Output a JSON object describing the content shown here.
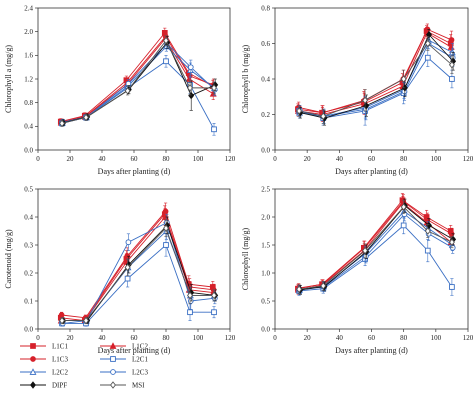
{
  "chart_data": [
    {
      "type": "line",
      "xlabel": "Days after planting (d)",
      "ylabel": "Chlorophyll a (mg/g)",
      "xlim": [
        0,
        120
      ],
      "ylim": [
        0,
        2.4
      ],
      "xticks": [
        0,
        20,
        40,
        60,
        80,
        100,
        120
      ],
      "yticks": [
        0.0,
        0.4,
        0.8,
        1.2,
        1.6,
        2.0,
        2.4
      ],
      "x": [
        15,
        30,
        56,
        80,
        95,
        110
      ],
      "series": [
        {
          "name": "L1C1",
          "values": [
            0.48,
            0.58,
            1.18,
            1.98,
            1.3,
            1.08
          ],
          "err": [
            0.05,
            0.05,
            0.07,
            0.08,
            0.12,
            0.1
          ]
        },
        {
          "name": "L1C2",
          "values": [
            0.46,
            0.56,
            1.1,
            1.88,
            1.2,
            0.95
          ],
          "err": [
            0.05,
            0.05,
            0.07,
            0.08,
            0.12,
            0.1
          ]
        },
        {
          "name": "L1C3",
          "values": [
            0.47,
            0.57,
            1.14,
            1.92,
            1.25,
            1.1
          ],
          "err": [
            0.05,
            0.05,
            0.07,
            0.08,
            0.12,
            0.1
          ]
        },
        {
          "name": "L2C1",
          "values": [
            0.45,
            0.55,
            1.05,
            1.5,
            1.1,
            0.35
          ],
          "err": [
            0.05,
            0.05,
            0.07,
            0.1,
            0.15,
            0.1
          ]
        },
        {
          "name": "L2C2",
          "values": [
            0.46,
            0.55,
            1.08,
            1.75,
            1.35,
            1.05
          ],
          "err": [
            0.05,
            0.05,
            0.07,
            0.08,
            0.12,
            0.1
          ]
        },
        {
          "name": "L2C3",
          "values": [
            0.47,
            0.56,
            1.12,
            1.8,
            1.4,
            1.02
          ],
          "err": [
            0.05,
            0.05,
            0.07,
            0.08,
            0.12,
            0.1
          ]
        },
        {
          "name": "DIPF",
          "values": [
            0.46,
            0.56,
            1.02,
            1.82,
            0.92,
            1.1
          ],
          "err": [
            0.05,
            0.05,
            0.07,
            0.1,
            0.25,
            0.1
          ]
        },
        {
          "name": "MSI",
          "values": [
            0.45,
            0.55,
            1.0,
            1.85,
            1.05,
            1.05
          ],
          "err": [
            0.05,
            0.05,
            0.07,
            0.08,
            0.12,
            0.1
          ]
        }
      ]
    },
    {
      "type": "line",
      "xlabel": "Days after planting (d)",
      "ylabel": "Chlorophyll b (mg/g)",
      "xlim": [
        0,
        120
      ],
      "ylim": [
        0,
        0.8
      ],
      "xticks": [
        0,
        20,
        40,
        60,
        80,
        100,
        120
      ],
      "yticks": [
        0.0,
        0.2,
        0.4,
        0.6,
        0.8
      ],
      "x": [
        15,
        30,
        56,
        80,
        95,
        110
      ],
      "series": [
        {
          "name": "L1C1",
          "values": [
            0.23,
            0.21,
            0.27,
            0.38,
            0.67,
            0.6
          ],
          "err": [
            0.03,
            0.04,
            0.06,
            0.05,
            0.03,
            0.05
          ]
        },
        {
          "name": "L1C2",
          "values": [
            0.22,
            0.2,
            0.26,
            0.36,
            0.66,
            0.58
          ],
          "err": [
            0.03,
            0.04,
            0.06,
            0.05,
            0.03,
            0.05
          ]
        },
        {
          "name": "L1C3",
          "values": [
            0.24,
            0.21,
            0.28,
            0.4,
            0.68,
            0.62
          ],
          "err": [
            0.03,
            0.04,
            0.06,
            0.05,
            0.03,
            0.05
          ]
        },
        {
          "name": "L2C1",
          "values": [
            0.22,
            0.18,
            0.22,
            0.32,
            0.52,
            0.4
          ],
          "err": [
            0.03,
            0.04,
            0.08,
            0.06,
            0.05,
            0.05
          ]
        },
        {
          "name": "L2C2",
          "values": [
            0.21,
            0.19,
            0.24,
            0.34,
            0.62,
            0.55
          ],
          "err": [
            0.03,
            0.04,
            0.06,
            0.05,
            0.03,
            0.05
          ]
        },
        {
          "name": "L2C3",
          "values": [
            0.22,
            0.19,
            0.23,
            0.33,
            0.6,
            0.52
          ],
          "err": [
            0.03,
            0.04,
            0.06,
            0.05,
            0.03,
            0.05
          ]
        },
        {
          "name": "DIPF",
          "values": [
            0.21,
            0.18,
            0.25,
            0.35,
            0.65,
            0.5
          ],
          "err": [
            0.03,
            0.04,
            0.06,
            0.05,
            0.03,
            0.05
          ]
        },
        {
          "name": "MSI",
          "values": [
            0.22,
            0.19,
            0.28,
            0.4,
            0.6,
            0.48
          ],
          "err": [
            0.03,
            0.04,
            0.06,
            0.05,
            0.04,
            0.05
          ]
        }
      ]
    },
    {
      "type": "line",
      "xlabel": "Days after planting (d)",
      "ylabel": "Carotenoid (mg/g)",
      "xlim": [
        0,
        120
      ],
      "ylim": [
        0,
        0.5
      ],
      "xticks": [
        0,
        20,
        40,
        60,
        80,
        100,
        120
      ],
      "yticks": [
        0.0,
        0.1,
        0.2,
        0.3,
        0.4,
        0.5
      ],
      "x": [
        15,
        30,
        56,
        80,
        95,
        110
      ],
      "series": [
        {
          "name": "L1C1",
          "values": [
            0.04,
            0.03,
            0.25,
            0.41,
            0.16,
            0.15
          ],
          "err": [
            0.01,
            0.01,
            0.03,
            0.03,
            0.03,
            0.02
          ]
        },
        {
          "name": "L1C2",
          "values": [
            0.03,
            0.03,
            0.24,
            0.4,
            0.14,
            0.13
          ],
          "err": [
            0.01,
            0.01,
            0.03,
            0.03,
            0.03,
            0.02
          ]
        },
        {
          "name": "L1C3",
          "values": [
            0.05,
            0.04,
            0.26,
            0.42,
            0.15,
            0.14
          ],
          "err": [
            0.01,
            0.01,
            0.03,
            0.03,
            0.03,
            0.02
          ]
        },
        {
          "name": "L2C1",
          "values": [
            0.02,
            0.02,
            0.18,
            0.3,
            0.06,
            0.06
          ],
          "err": [
            0.01,
            0.01,
            0.03,
            0.04,
            0.03,
            0.02
          ]
        },
        {
          "name": "L2C2",
          "values": [
            0.03,
            0.03,
            0.22,
            0.35,
            0.12,
            0.12
          ],
          "err": [
            0.01,
            0.01,
            0.03,
            0.03,
            0.03,
            0.02
          ]
        },
        {
          "name": "L2C3",
          "values": [
            0.02,
            0.03,
            0.31,
            0.38,
            0.1,
            0.11
          ],
          "err": [
            0.01,
            0.01,
            0.03,
            0.03,
            0.03,
            0.02
          ]
        },
        {
          "name": "DIPF",
          "values": [
            0.03,
            0.03,
            0.23,
            0.37,
            0.13,
            0.12
          ],
          "err": [
            0.01,
            0.01,
            0.03,
            0.03,
            0.03,
            0.02
          ]
        },
        {
          "name": "MSI",
          "values": [
            0.03,
            0.03,
            0.22,
            0.36,
            0.12,
            0.12
          ],
          "err": [
            0.01,
            0.01,
            0.03,
            0.03,
            0.03,
            0.02
          ]
        }
      ]
    },
    {
      "type": "line",
      "xlabel": "Days after planting (d)",
      "ylabel": "Chlorophyll (mg/g)",
      "xlim": [
        0,
        120
      ],
      "ylim": [
        0,
        2.5
      ],
      "xticks": [
        0,
        20,
        40,
        60,
        80,
        100,
        120
      ],
      "yticks": [
        0.0,
        0.5,
        1.0,
        1.5,
        2.0,
        2.5
      ],
      "x": [
        15,
        30,
        56,
        80,
        95,
        110
      ],
      "series": [
        {
          "name": "L1C1",
          "values": [
            0.72,
            0.8,
            1.45,
            2.3,
            2.0,
            1.75
          ],
          "err": [
            0.08,
            0.08,
            0.12,
            0.12,
            0.12,
            0.1
          ]
        },
        {
          "name": "L1C2",
          "values": [
            0.7,
            0.78,
            1.4,
            2.25,
            1.9,
            1.55
          ],
          "err": [
            0.08,
            0.08,
            0.12,
            0.12,
            0.12,
            0.1
          ]
        },
        {
          "name": "L1C3",
          "values": [
            0.73,
            0.8,
            1.45,
            2.28,
            1.95,
            1.7
          ],
          "err": [
            0.08,
            0.08,
            0.12,
            0.12,
            0.12,
            0.1
          ]
        },
        {
          "name": "L2C1",
          "values": [
            0.68,
            0.72,
            1.25,
            1.85,
            1.4,
            0.75
          ],
          "err": [
            0.08,
            0.08,
            0.12,
            0.15,
            0.2,
            0.15
          ]
        },
        {
          "name": "L2C2",
          "values": [
            0.7,
            0.76,
            1.35,
            2.1,
            1.8,
            1.5
          ],
          "err": [
            0.08,
            0.08,
            0.12,
            0.12,
            0.12,
            0.1
          ]
        },
        {
          "name": "L2C3",
          "values": [
            0.7,
            0.75,
            1.3,
            2.05,
            1.7,
            1.45
          ],
          "err": [
            0.08,
            0.08,
            0.12,
            0.12,
            0.12,
            0.1
          ]
        },
        {
          "name": "DIPF",
          "values": [
            0.7,
            0.76,
            1.38,
            2.2,
            1.85,
            1.6
          ],
          "err": [
            0.08,
            0.08,
            0.12,
            0.12,
            0.12,
            0.1
          ]
        },
        {
          "name": "MSI",
          "values": [
            0.71,
            0.77,
            1.4,
            2.18,
            1.75,
            1.55
          ],
          "err": [
            0.08,
            0.08,
            0.12,
            0.12,
            0.12,
            0.1
          ]
        }
      ]
    }
  ],
  "legend": {
    "entries": [
      {
        "name": "L1C1",
        "color": "#d6202a",
        "marker": "square-filled"
      },
      {
        "name": "L1C3",
        "color": "#d6202a",
        "marker": "circle-filled"
      },
      {
        "name": "L2C2",
        "color": "#3a6fc4",
        "marker": "triangle-open"
      },
      {
        "name": "DIPF",
        "color": "#111111",
        "marker": "diamond-filled"
      },
      {
        "name": "L1C2",
        "color": "#d6202a",
        "marker": "triangle-filled"
      },
      {
        "name": "L2C1",
        "color": "#3a6fc4",
        "marker": "square-open"
      },
      {
        "name": "L2C3",
        "color": "#3a6fc4",
        "marker": "circle-open"
      },
      {
        "name": "MSI",
        "color": "#555555",
        "marker": "diamond-open"
      }
    ]
  },
  "colors": {
    "L1C1": "#d6202a",
    "L1C2": "#d6202a",
    "L1C3": "#d6202a",
    "L2C1": "#3a6fc4",
    "L2C2": "#3a6fc4",
    "L2C3": "#3a6fc4",
    "DIPF": "#111111",
    "MSI": "#555555"
  },
  "markers": {
    "L1C1": "square-filled",
    "L1C2": "triangle-filled",
    "L1C3": "circle-filled",
    "L2C1": "square-open",
    "L2C2": "triangle-open",
    "L2C3": "circle-open",
    "DIPF": "diamond-filled",
    "MSI": "diamond-open"
  }
}
